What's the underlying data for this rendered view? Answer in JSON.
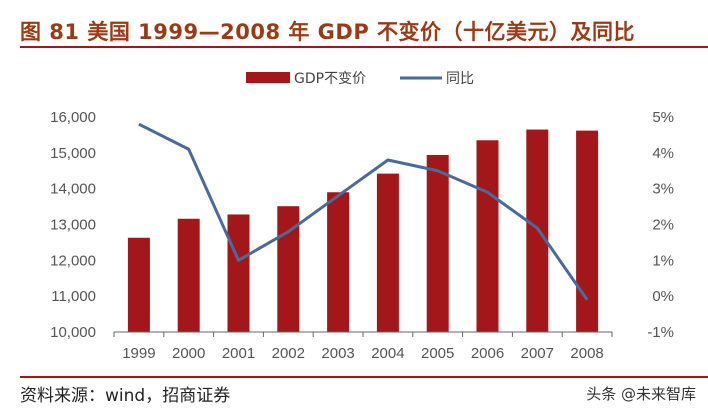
{
  "chart_data": {
    "type": "bar+line",
    "title": "图 81  美国 1999—2008 年 GDP 不变价（十亿美元）及同比",
    "categories": [
      "1999",
      "2000",
      "2001",
      "2002",
      "2003",
      "2004",
      "2005",
      "2006",
      "2007",
      "2008"
    ],
    "series": [
      {
        "name": "GDP不变价",
        "type": "bar",
        "axis": "left",
        "color": "#a3171a",
        "values": [
          12630,
          13160,
          13280,
          13510,
          13900,
          14420,
          14940,
          15350,
          15650,
          15620
        ]
      },
      {
        "name": "同比",
        "type": "line",
        "axis": "right",
        "color": "#4a6b9a",
        "values": [
          4.8,
          4.1,
          1.0,
          1.8,
          2.8,
          3.8,
          3.5,
          2.9,
          1.9,
          -0.1
        ]
      }
    ],
    "left_axis": {
      "ylim": [
        10000,
        16000
      ],
      "ticks": [
        "10,000",
        "11,000",
        "12,000",
        "13,000",
        "14,000",
        "15,000",
        "16,000"
      ]
    },
    "right_axis": {
      "ylim": [
        -1,
        5
      ],
      "ticks": [
        "-1%",
        "0%",
        "1%",
        "2%",
        "3%",
        "4%",
        "5%"
      ]
    },
    "grid": false,
    "legend": "top"
  },
  "footer": {
    "source": "资料来源：wind，招商证券",
    "watermark": "头条 @未来智库"
  }
}
